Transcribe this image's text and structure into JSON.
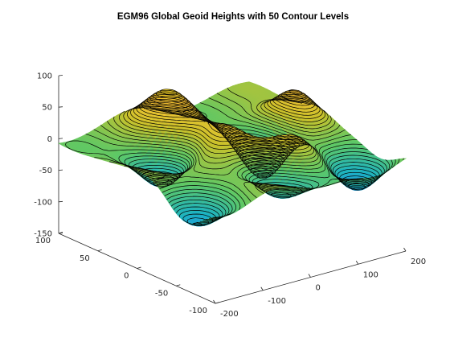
{
  "chart_data": {
    "type": "surface-3d-contour",
    "title": "EGM96 Global Geoid Heights with 50 Contour Levels",
    "xlabel": "",
    "ylabel": "",
    "zlabel": "",
    "contour_levels": 50,
    "xlim": [
      -200,
      200
    ],
    "ylim": [
      -100,
      100
    ],
    "zlim": [
      -150,
      100
    ],
    "x_ticks": [
      "-200",
      "-100",
      "0",
      "100",
      "200"
    ],
    "y_ticks": [
      "-100",
      "-50",
      "0",
      "50",
      "100"
    ],
    "z_ticks": [
      "-150",
      "-100",
      "-50",
      "0",
      "50",
      "100"
    ],
    "colormap": [
      "#3e26a8",
      "#2e7ef7",
      "#1bb2c3",
      "#5fc865",
      "#c9c12b",
      "#fcc335",
      "#f9fb15"
    ],
    "contour_color": "#000000",
    "grid": false,
    "surface_peaks": [
      {
        "lon": -40,
        "lat": 55,
        "height": 65
      },
      {
        "lon": 140,
        "lat": 10,
        "height": 80
      },
      {
        "lon": 50,
        "lat": -40,
        "height": 50
      },
      {
        "lon": -75,
        "lat": -5,
        "height": 25
      },
      {
        "lon": -10,
        "lat": 0,
        "height": 40
      }
    ],
    "surface_troughs": [
      {
        "lon": 80,
        "lat": 5,
        "height": -105
      },
      {
        "lon": -110,
        "lat": 20,
        "height": -60
      },
      {
        "lon": 0,
        "lat": -60,
        "height": -55
      },
      {
        "lon": 150,
        "lat": -70,
        "height": -65
      },
      {
        "lon": -175,
        "lat": -60,
        "height": -45
      }
    ]
  }
}
